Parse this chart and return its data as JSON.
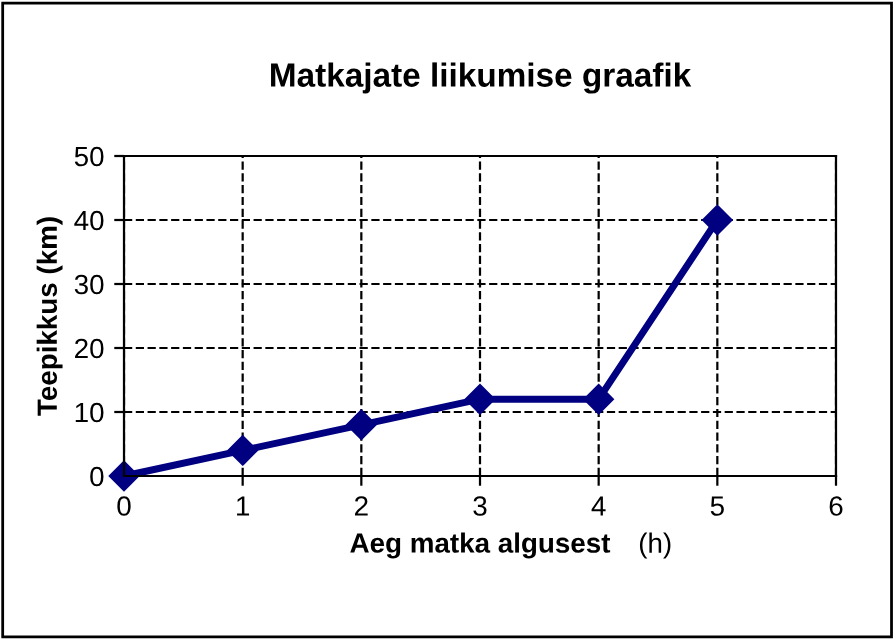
{
  "chart_data": {
    "type": "line",
    "title": "Matkajate liikumise graafik",
    "xlabel": "Aeg matka algusest",
    "ylabel": "Teepikkus (km)",
    "annotations": [
      "(h)"
    ],
    "x": [
      0,
      1,
      2,
      3,
      4,
      5
    ],
    "series": [
      {
        "color": "#000080",
        "values": [
          0,
          4,
          8,
          12,
          12,
          40
        ]
      }
    ],
    "xlim": [
      0,
      6
    ],
    "xticks": [
      0,
      1,
      2,
      3,
      4,
      5,
      6
    ],
    "ylim": [
      0,
      50
    ],
    "yticks": [
      0,
      10,
      20,
      30,
      40,
      50
    ],
    "grid": true,
    "marker": "diamond",
    "line_style": "solid"
  }
}
